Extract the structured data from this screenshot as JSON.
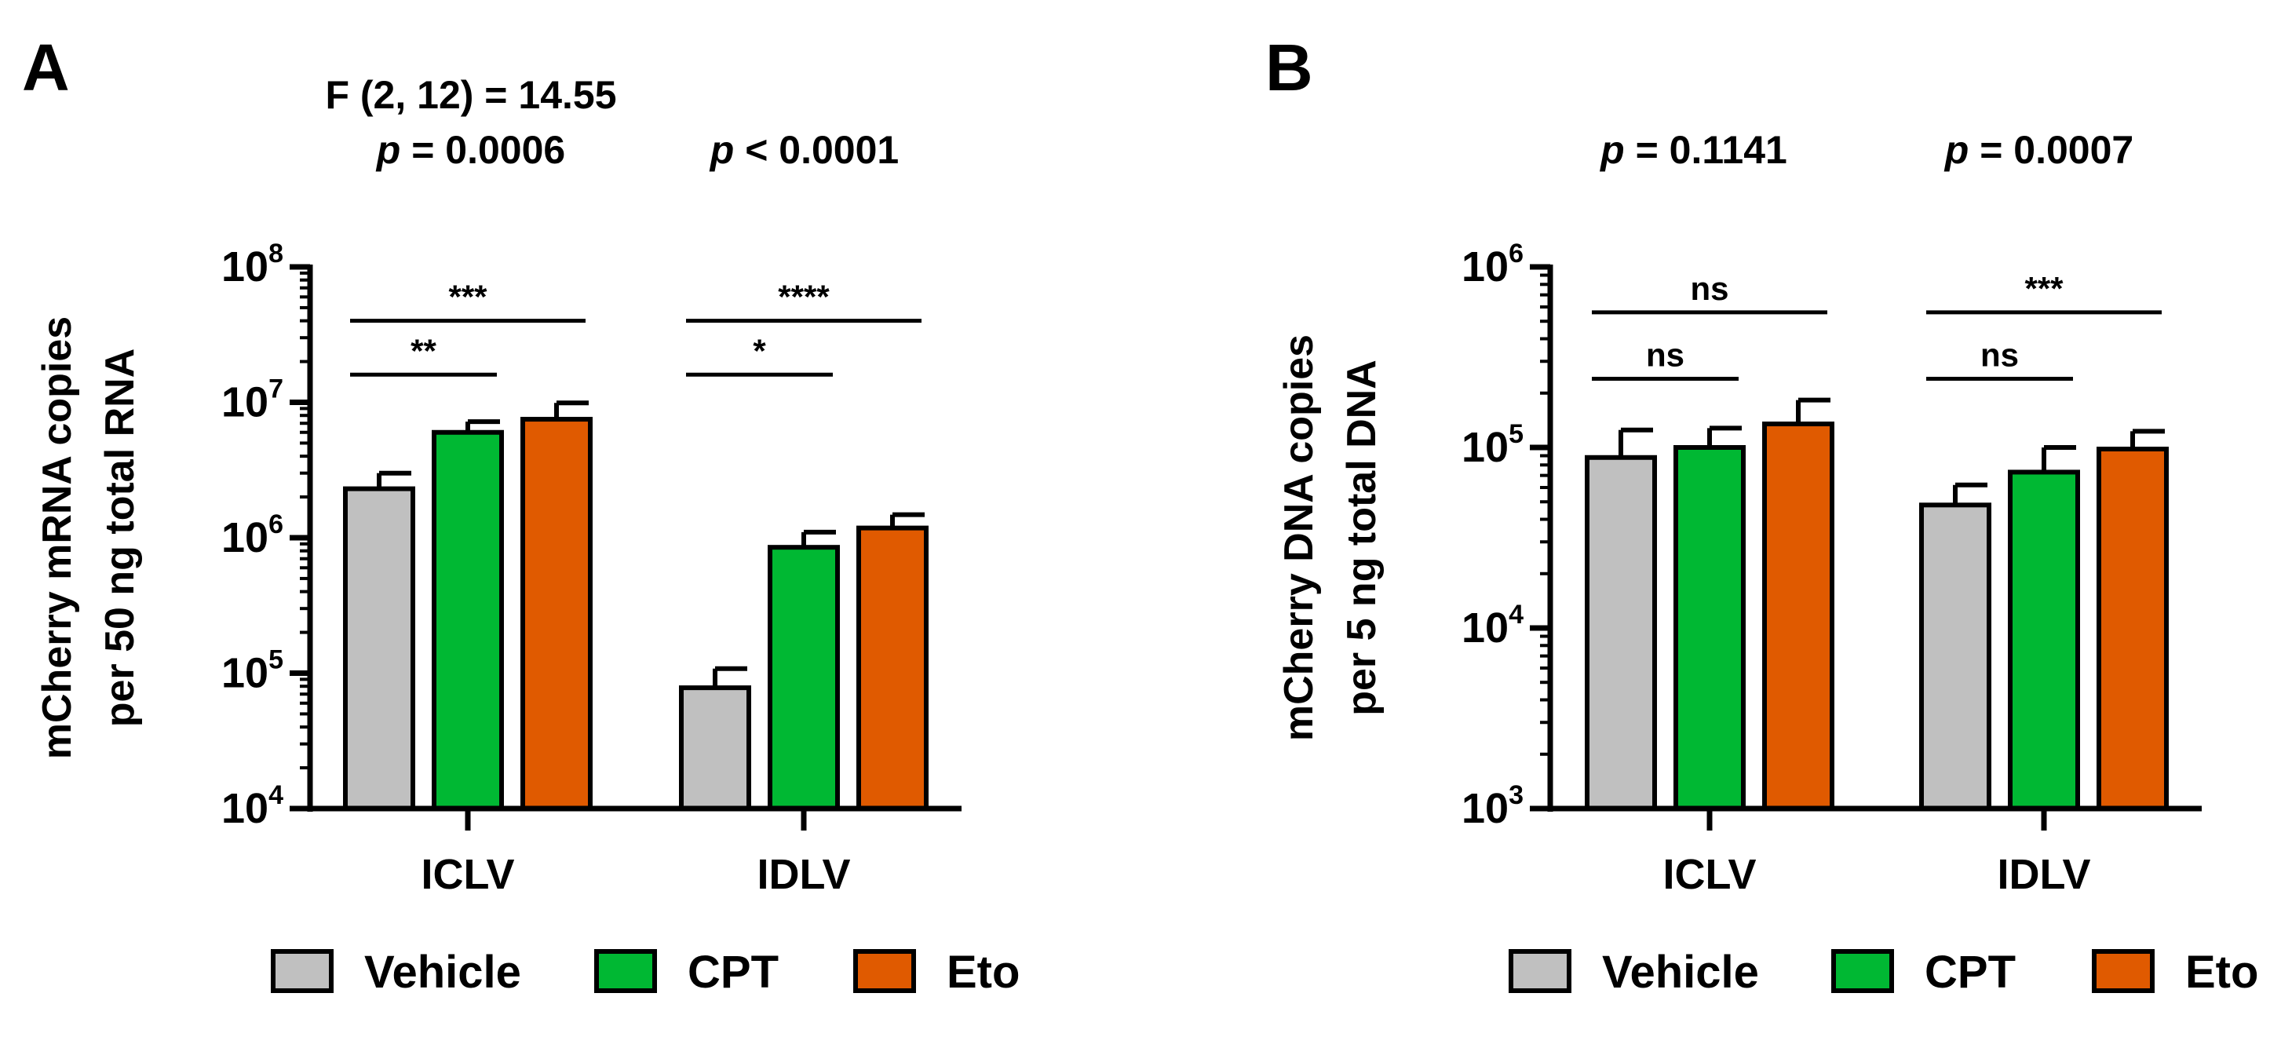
{
  "colors": {
    "Vehicle": "#c0c0c0",
    "CPT": "#00b833",
    "Eto": "#e05a00"
  },
  "legend": [
    "Vehicle",
    "CPT",
    "Eto"
  ],
  "chart_data": [
    {
      "panel": "A",
      "type": "bar",
      "yscale": "log",
      "ylim": [
        10000,
        100000000
      ],
      "yticks": [
        {
          "base": "10",
          "exp": "4"
        },
        {
          "base": "10",
          "exp": "5"
        },
        {
          "base": "10",
          "exp": "6"
        },
        {
          "base": "10",
          "exp": "7"
        },
        {
          "base": "10",
          "exp": "8"
        }
      ],
      "ylabel": [
        "mCherry mRNA copies",
        "per 50 ng total RNA"
      ],
      "categories": [
        "ICLV",
        "IDLV"
      ],
      "series": [
        {
          "name": "Vehicle",
          "values": [
            2300000,
            78000
          ],
          "errors": [
            3000000,
            108000
          ]
        },
        {
          "name": "CPT",
          "values": [
            6000000,
            850000
          ],
          "errors": [
            7200000,
            1100000
          ]
        },
        {
          "name": "Eto",
          "values": [
            7500000,
            1180000
          ],
          "errors": [
            9900000,
            1480000
          ]
        }
      ],
      "stats": [
        {
          "text": "F (2, 12) = 14.55",
          "p": "= 0.0006"
        },
        {
          "text": "",
          "p": "< 0.0001"
        }
      ],
      "stat_p_symbol": "p",
      "comparisons": [
        {
          "category": "ICLV",
          "from": "Vehicle",
          "to": "CPT",
          "label": "**",
          "y": 16000000
        },
        {
          "category": "ICLV",
          "from": "Vehicle",
          "to": "Eto",
          "label": "***",
          "y": 40000000
        },
        {
          "category": "IDLV",
          "from": "Vehicle",
          "to": "CPT",
          "label": "*",
          "y": 16000000
        },
        {
          "category": "IDLV",
          "from": "Vehicle",
          "to": "Eto",
          "label": "****",
          "y": 40000000
        }
      ],
      "legend_position": "bottom"
    },
    {
      "panel": "B",
      "type": "bar",
      "yscale": "log",
      "ylim": [
        1000,
        1000000
      ],
      "yticks": [
        {
          "base": "10",
          "exp": "3"
        },
        {
          "base": "10",
          "exp": "4"
        },
        {
          "base": "10",
          "exp": "5"
        },
        {
          "base": "10",
          "exp": "6"
        }
      ],
      "ylabel": [
        "mCherry DNA copies",
        "per 5 ng total DNA"
      ],
      "categories": [
        "ICLV",
        "IDLV"
      ],
      "series": [
        {
          "name": "Vehicle",
          "values": [
            88000,
            48000
          ],
          "errors": [
            125000,
            62000
          ]
        },
        {
          "name": "CPT",
          "values": [
            100000,
            73000
          ],
          "errors": [
            128000,
            100000
          ]
        },
        {
          "name": "Eto",
          "values": [
            135000,
            98000
          ],
          "errors": [
            183000,
            123000
          ]
        }
      ],
      "stats": [
        {
          "text": "",
          "p": "= 0.1141"
        },
        {
          "text": "",
          "p": "= 0.0007"
        }
      ],
      "stat_p_symbol": "p",
      "comparisons": [
        {
          "category": "ICLV",
          "from": "Vehicle",
          "to": "CPT",
          "label": "ns",
          "y": 240000
        },
        {
          "category": "ICLV",
          "from": "Vehicle",
          "to": "Eto",
          "label": "ns",
          "y": 560000
        },
        {
          "category": "IDLV",
          "from": "Vehicle",
          "to": "CPT",
          "label": "ns",
          "y": 240000
        },
        {
          "category": "IDLV",
          "from": "Vehicle",
          "to": "Eto",
          "label": "***",
          "y": 560000
        }
      ],
      "legend_position": "bottom"
    }
  ]
}
